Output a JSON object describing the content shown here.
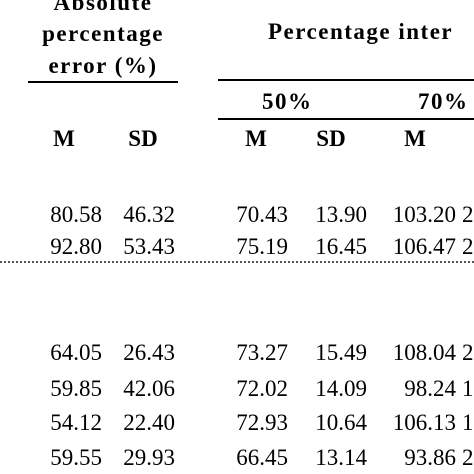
{
  "header": {
    "abs_line1": "Absolute",
    "abs_line2": "percentage",
    "abs_line3": "error (%)",
    "pct_interval": "Percentage inter",
    "sub_50": "50%",
    "sub_70": "70%"
  },
  "columns": {
    "m1": "M",
    "sd1": "SD",
    "m2": "M",
    "sd2": "SD",
    "m3": "M"
  },
  "group1": [
    {
      "abs_m": "80.58",
      "abs_sd": "46.32",
      "p50_m": "70.43",
      "p50_sd": "13.90",
      "p70_m": "103.20",
      "cut": "2"
    },
    {
      "abs_m": "92.80",
      "abs_sd": "53.43",
      "p50_m": "75.19",
      "p50_sd": "16.45",
      "p70_m": "106.47",
      "cut": "2"
    }
  ],
  "group2": [
    {
      "abs_m": "64.05",
      "abs_sd": "26.43",
      "p50_m": "73.27",
      "p50_sd": "15.49",
      "p70_m": "108.04",
      "cut": "2"
    },
    {
      "abs_m": "59.85",
      "abs_sd": "42.06",
      "p50_m": "72.02",
      "p50_sd": "14.09",
      "p70_m": "98.24",
      "cut": "1"
    },
    {
      "abs_m": "54.12",
      "abs_sd": "22.40",
      "p50_m": "72.93",
      "p50_sd": "10.64",
      "p70_m": "106.13",
      "cut": "1"
    },
    {
      "abs_m": "59.55",
      "abs_sd": "29.93",
      "p50_m": "66.45",
      "p50_sd": "13.14",
      "p70_m": "93.86",
      "cut": "2"
    }
  ]
}
